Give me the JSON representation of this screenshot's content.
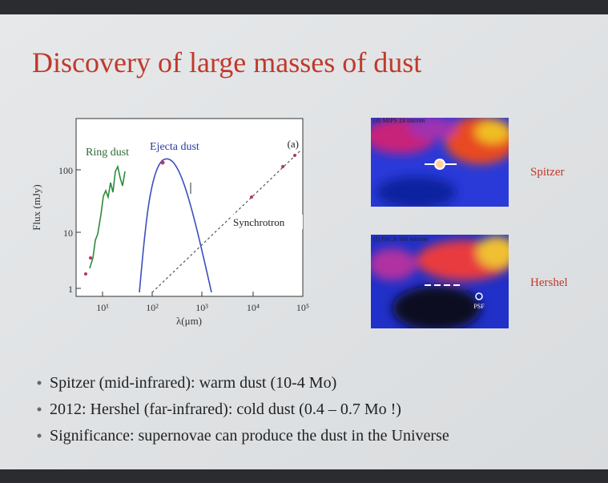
{
  "slide": {
    "title": "Discovery of large masses of dust",
    "plot": {
      "panel": "(a)",
      "y_label": "Flux (mJy)",
      "x_label": "λ(μm)",
      "y_ticks": [
        "100",
        "10",
        "1"
      ],
      "x_ticks": [
        "10¹",
        "10²",
        "10³",
        "10⁴",
        "10⁵"
      ],
      "annotations": [
        "Ring dust",
        "Ejecta dust",
        "Synchrotron"
      ]
    },
    "images": [
      {
        "caption": "(d) MIPS 24 micron",
        "label": "Spitzer"
      },
      {
        "caption": "(f) PACS 160 micron",
        "label": "Hershel",
        "marker": "PSF"
      }
    ],
    "bullets": [
      "Spitzer (mid-infrared): warm dust (10-4 Mo)",
      "2012: Hershel (far-infrared): cold dust (0.4 – 0.7 Mo !)",
      "Significance: supernovae can produce the dust in the Universe"
    ]
  }
}
